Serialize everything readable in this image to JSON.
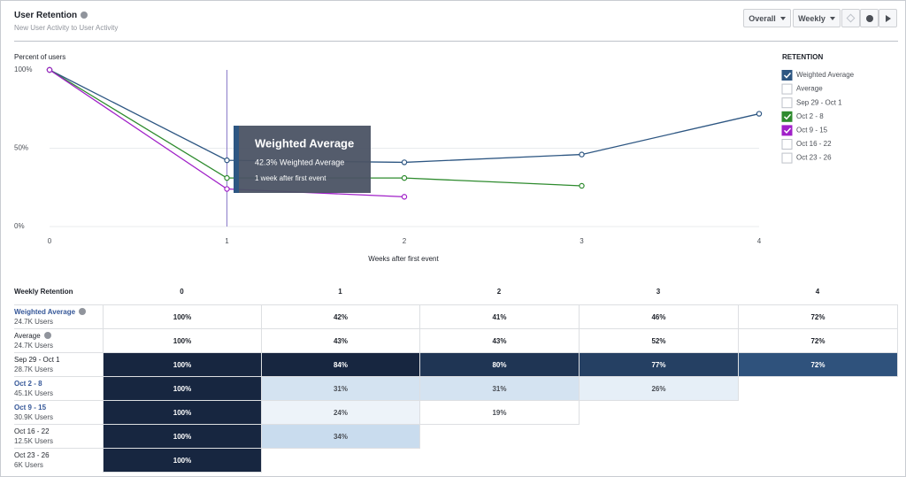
{
  "header": {
    "title": "User Retention",
    "subtitle": "New User Activity to User Activity",
    "buttons": [
      "Overall",
      "Weekly"
    ]
  },
  "chart_data": {
    "type": "line",
    "y_label": "Percent of users",
    "x_label": "Weeks after first event",
    "x": [
      0,
      1,
      2,
      3,
      4
    ],
    "xlim": [
      0,
      4
    ],
    "xticks": [
      0,
      1,
      2,
      3,
      4
    ],
    "ylim": [
      0,
      100
    ],
    "yticks": [
      {
        "value": 0,
        "label": "0%"
      },
      {
        "value": 50,
        "label": "50%"
      },
      {
        "value": 100,
        "label": "100%"
      }
    ],
    "grid": true,
    "hover_x": 1,
    "series": [
      {
        "name": "Weighted Average",
        "color": "#2d5682",
        "values": [
          100,
          42.3,
          41,
          46,
          72
        ]
      },
      {
        "name": "Oct 2 - 8",
        "color": "#2e8b2e",
        "values": [
          100,
          31,
          31,
          26,
          null
        ]
      },
      {
        "name": "Oct 9 - 15",
        "color": "#a020c8",
        "values": [
          100,
          24,
          19,
          null,
          null
        ]
      }
    ],
    "tooltip": {
      "title": "Weighted Average",
      "line": "42.3% Weighted Average",
      "note": "1 week after first event"
    },
    "legend": {
      "title": "RETENTION",
      "entries": [
        {
          "label": "Weighted Average",
          "checked": true
        },
        {
          "label": "Average",
          "checked": false
        },
        {
          "label": "Sep 29 - Oct 1",
          "checked": false
        },
        {
          "label": "Oct 2 - 8",
          "checked": true
        },
        {
          "label": "Oct 9 - 15",
          "checked": true
        },
        {
          "label": "Oct 16 - 22",
          "checked": false
        },
        {
          "label": "Oct 23 - 26",
          "checked": false
        }
      ]
    }
  },
  "table": {
    "title": "Weekly Retention",
    "columns": [
      "0",
      "1",
      "2",
      "3",
      "4"
    ],
    "rows": [
      {
        "name": "Weighted Average",
        "users": "24.7K Users",
        "link": true,
        "info": true,
        "summary": true,
        "cells": [
          "100%",
          "42%",
          "41%",
          "46%",
          "72%"
        ]
      },
      {
        "name": "Average",
        "users": "24.7K Users",
        "link": false,
        "info": true,
        "summary": true,
        "cells": [
          "100%",
          "43%",
          "43%",
          "52%",
          "72%"
        ]
      },
      {
        "name": "Sep 29 - Oct 1",
        "users": "28.7K Users",
        "link": false,
        "info": false,
        "summary": false,
        "cells": [
          "100%",
          "84%",
          "80%",
          "77%",
          "72%"
        ]
      },
      {
        "name": "Oct 2 - 8",
        "users": "45.1K Users",
        "link": true,
        "info": false,
        "summary": false,
        "cells": [
          "100%",
          "31%",
          "31%",
          "26%"
        ]
      },
      {
        "name": "Oct 9 - 15",
        "users": "30.9K Users",
        "link": true,
        "info": false,
        "summary": false,
        "cells": [
          "100%",
          "24%",
          "19%"
        ]
      },
      {
        "name": "Oct 16 - 22",
        "users": "12.5K Users",
        "link": false,
        "info": false,
        "summary": false,
        "cells": [
          "100%",
          "34%"
        ]
      },
      {
        "name": "Oct 23 - 26",
        "users": "6K Users",
        "link": false,
        "info": false,
        "summary": false,
        "cells": [
          "100%"
        ]
      }
    ]
  }
}
